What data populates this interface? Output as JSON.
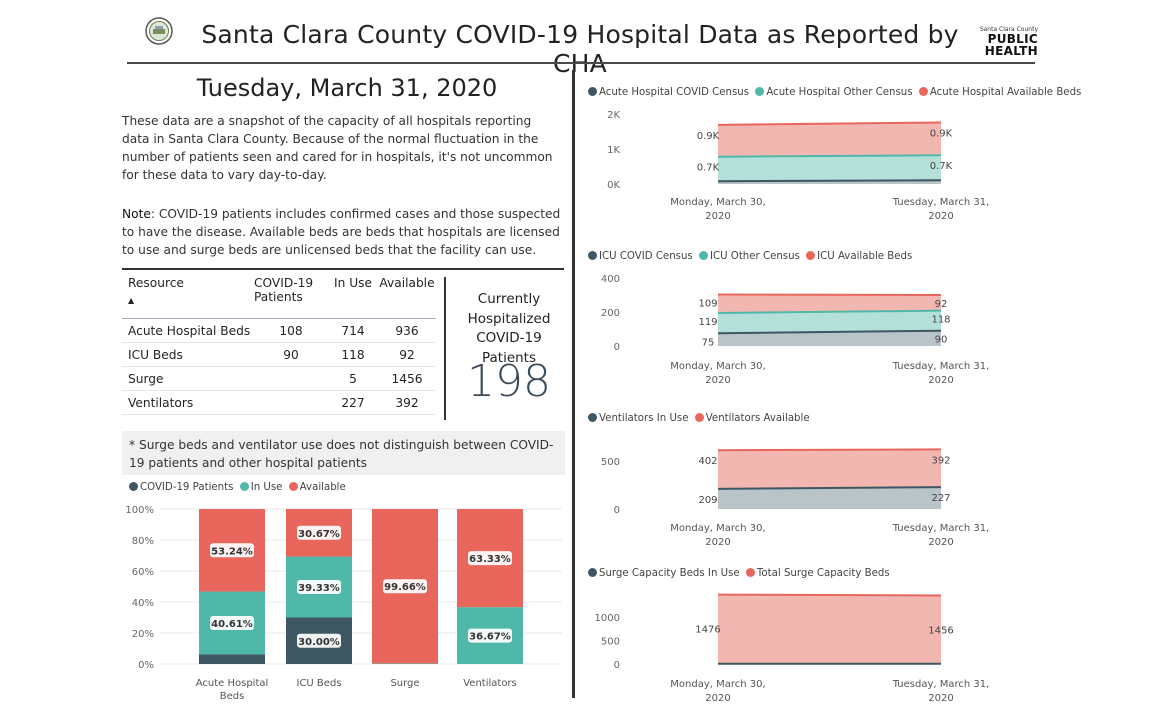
{
  "header": {
    "title": "Santa Clara County COVID-19 Hospital Data as Reported by CHA",
    "logo_text_top": "Santa Clara County",
    "logo_text_public": "PUBLIC",
    "logo_text_health": "HEALTH"
  },
  "date": "Tuesday, March 31, 2020",
  "intro": "These data are a snapshot of the capacity of all hospitals reporting data in Santa Clara County. Because of the normal fluctuation in the number of patients seen and cared for in hospitals, it's not uncommon for these data to vary day-to-day.",
  "note": {
    "label": "Note",
    "text": ": COVID-19 patients includes confirmed cases and those suspected to have the disease. Available beds are beds that hospitals are licensed to use and surge beds are unlicensed beds that the facility can use."
  },
  "table": {
    "headers": [
      "Resource",
      "COVID-19 Patients",
      "In Use",
      "Available"
    ],
    "rows": [
      [
        "Acute Hospital Beds",
        "108",
        "714",
        "936"
      ],
      [
        "ICU Beds",
        "90",
        "118",
        "92"
      ],
      [
        "Surge",
        "",
        "5",
        "1456"
      ],
      [
        "Ventilators",
        "",
        "227",
        "392"
      ]
    ]
  },
  "kpi": {
    "title": "Currently Hospitalized COVID-19 Patients",
    "value": "198"
  },
  "footnote": "* Surge beds and ventilator use does not distinguish between COVID-19 patients and other hospital patients",
  "colors": {
    "covid": "#3f5663",
    "inuse": "#4fb8a8",
    "available": "#e8665c",
    "available_fill": "#f3b7b2",
    "inuse_fill": "#b3e0d8",
    "covid_fill": "#b8c4c8"
  },
  "chart_data": [
    {
      "type": "bar",
      "stacked": "100%",
      "legend": [
        "COVID-19 Patients",
        "In Use",
        "Available"
      ],
      "categories": [
        "Acute Hospital Beds",
        "ICU Beds",
        "Surge",
        "Ventilators"
      ],
      "series": [
        {
          "name": "COVID-19 Patients",
          "values": [
            6.15,
            30.0,
            0,
            0
          ],
          "labels": [
            "",
            "30.00%",
            "",
            ""
          ]
        },
        {
          "name": "In Use",
          "values": [
            40.61,
            39.33,
            0.34,
            36.67
          ],
          "labels": [
            "40.61%",
            "39.33%",
            "",
            "36.67%"
          ]
        },
        {
          "name": "Available",
          "values": [
            53.24,
            30.67,
            99.66,
            63.33
          ],
          "labels": [
            "53.24%",
            "30.67%",
            "99.66%",
            "63.33%"
          ]
        }
      ],
      "yticks": [
        "0%",
        "20%",
        "40%",
        "60%",
        "80%",
        "100%"
      ],
      "ylim": [
        0,
        100
      ]
    },
    {
      "type": "area",
      "legend": [
        "Acute Hospital COVID Census",
        "Acute Hospital Other Census",
        "Acute Hospital Available Beds"
      ],
      "x": [
        "Monday, March 30, 2020",
        "Tuesday, March 31, 2020"
      ],
      "series": [
        {
          "name": "Acute Hospital COVID Census",
          "values": [
            80,
            108
          ]
        },
        {
          "name": "Acute Hospital Other Census",
          "values": [
            700,
            714
          ],
          "labels": [
            "0.7K",
            "0.7K"
          ]
        },
        {
          "name": "Acute Hospital Available Beds",
          "values": [
            910,
            936
          ],
          "labels": [
            "0.9K",
            "0.9K"
          ]
        }
      ],
      "yticks": [
        "0K",
        "1K",
        "2K"
      ],
      "ylim": [
        0,
        2000
      ]
    },
    {
      "type": "area",
      "legend": [
        "ICU COVID Census",
        "ICU Other Census",
        "ICU Available Beds"
      ],
      "x": [
        "Monday, March 30, 2020",
        "Tuesday, March 31, 2020"
      ],
      "series": [
        {
          "name": "ICU COVID Census",
          "values": [
            75,
            90
          ],
          "labels": [
            "75",
            "90"
          ]
        },
        {
          "name": "ICU Other Census",
          "values": [
            119,
            118
          ],
          "labels": [
            "119",
            "118"
          ]
        },
        {
          "name": "ICU Available Beds",
          "values": [
            109,
            92
          ],
          "labels": [
            "109",
            "92"
          ]
        }
      ],
      "yticks": [
        "0",
        "200",
        "400"
      ],
      "ylim": [
        0,
        400
      ]
    },
    {
      "type": "area",
      "legend": [
        "Ventilators In Use",
        "Ventilators Available"
      ],
      "x": [
        "Monday, March 30, 2020",
        "Tuesday, March 31, 2020"
      ],
      "series": [
        {
          "name": "Ventilators In Use",
          "values": [
            209,
            227
          ],
          "labels": [
            "209",
            "227"
          ]
        },
        {
          "name": "Ventilators Available",
          "values": [
            402,
            392
          ],
          "labels": [
            "402",
            "392"
          ]
        }
      ],
      "yticks": [
        "0",
        "500"
      ],
      "ylim": [
        0,
        800
      ]
    },
    {
      "type": "area",
      "legend": [
        "Surge Capacity Beds In Use",
        "Total Surge Capacity Beds"
      ],
      "x": [
        "Monday, March 30, 2020",
        "Tuesday, March 31, 2020"
      ],
      "series": [
        {
          "name": "Surge Capacity Beds In Use",
          "values": [
            5,
            5
          ]
        },
        {
          "name": "Total Surge Capacity Beds",
          "values": [
            1476,
            1456
          ],
          "labels": [
            "1476",
            "1456"
          ]
        }
      ],
      "yticks": [
        "0",
        "500",
        "1000"
      ],
      "ylim": [
        0,
        1600
      ]
    }
  ]
}
